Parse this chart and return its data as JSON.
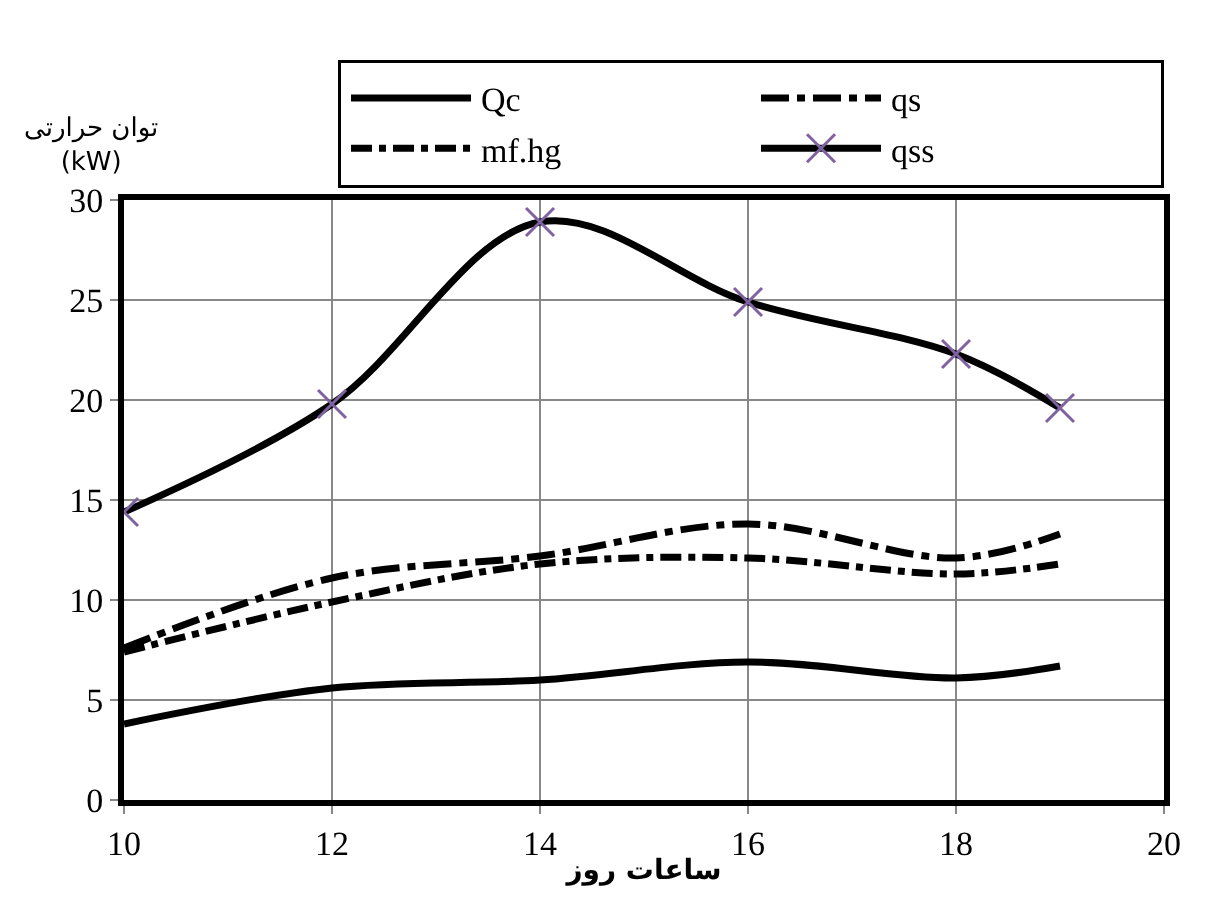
{
  "chart_data": {
    "type": "line",
    "xlabel": "ساعات روز",
    "ylabel": "توان حرارتی\n(kW)",
    "x": [
      10,
      12,
      14,
      16,
      18,
      19
    ],
    "series": [
      {
        "name": "Qc",
        "color": "#000000",
        "line_style": "solid",
        "marker": "none",
        "values": [
          3.8,
          5.6,
          6.0,
          6.9,
          6.1,
          6.7
        ]
      },
      {
        "name": "qs",
        "color": "#000000",
        "line_style": "longdashdot",
        "marker": "none",
        "values": [
          7.6,
          11.1,
          12.2,
          13.8,
          12.1,
          13.3
        ]
      },
      {
        "name": "mf.hg",
        "color": "#000000",
        "line_style": "dashdot",
        "marker": "none",
        "values": [
          7.4,
          9.9,
          11.8,
          12.1,
          11.3,
          11.8
        ]
      },
      {
        "name": "qss",
        "color": "#000000",
        "line_style": "solid",
        "marker": "cross",
        "colors": [
          "#7e62a1",
          "#7e62a1",
          "#7e62a1",
          "#7e62a1",
          "#7e62a1",
          "#7e62a1"
        ],
        "values": [
          14.4,
          19.8,
          28.9,
          24.9,
          22.3,
          19.6
        ]
      }
    ],
    "xlim": [
      10,
      20
    ],
    "xticks": [
      10,
      12,
      14,
      16,
      18,
      20
    ],
    "ylim": [
      0,
      30
    ],
    "yticks": [
      0,
      5,
      10,
      15,
      20,
      25,
      30
    ],
    "grid": true,
    "legend": "top right"
  }
}
